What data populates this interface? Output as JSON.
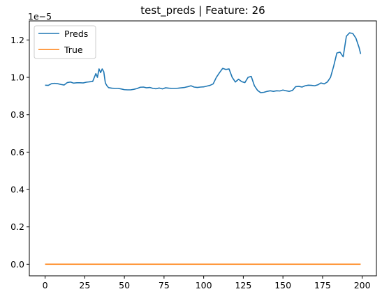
{
  "chart_data": {
    "type": "line",
    "title": "test_preds | Feature: 26",
    "xlabel": "",
    "ylabel": "",
    "offset_text": "1e−5",
    "xlim": [
      -9.95,
      208.95
    ],
    "ylim": [
      -0.062,
      1.302
    ],
    "xticks": [
      0,
      25,
      50,
      75,
      100,
      125,
      150,
      175,
      200
    ],
    "yticks": [
      0.0,
      0.2,
      0.4,
      0.6,
      0.8,
      1.0,
      1.2
    ],
    "ytick_labels": [
      "0.0",
      "0.2",
      "0.4",
      "0.6",
      "0.8",
      "1.0",
      "1.2"
    ],
    "grid": false,
    "legend_position": "top-left",
    "series": [
      {
        "name": "Preds",
        "color": "#1f77b4",
        "x": [
          0,
          2,
          4,
          6,
          8,
          10,
          12,
          14,
          16,
          18,
          20,
          22,
          24,
          26,
          28,
          30,
          32,
          33,
          34,
          35,
          36,
          37,
          38,
          39,
          40,
          42,
          44,
          46,
          48,
          50,
          52,
          54,
          56,
          58,
          60,
          62,
          64,
          66,
          68,
          70,
          72,
          74,
          76,
          78,
          80,
          82,
          84,
          86,
          88,
          90,
          92,
          94,
          96,
          98,
          100,
          102,
          104,
          106,
          108,
          110,
          112,
          114,
          116,
          118,
          120,
          122,
          124,
          126,
          128,
          130,
          132,
          134,
          136,
          138,
          140,
          142,
          144,
          146,
          148,
          150,
          152,
          154,
          156,
          158,
          160,
          162,
          164,
          166,
          168,
          170,
          172,
          174,
          176,
          178,
          180,
          182,
          184,
          186,
          188,
          190,
          192,
          194,
          196,
          198,
          199
        ],
        "values": [
          0.958,
          0.957,
          0.966,
          0.968,
          0.966,
          0.962,
          0.959,
          0.972,
          0.975,
          0.969,
          0.971,
          0.971,
          0.97,
          0.974,
          0.976,
          0.978,
          1.02,
          1.0,
          1.045,
          1.025,
          1.045,
          1.03,
          0.97,
          0.955,
          0.945,
          0.942,
          0.941,
          0.941,
          0.938,
          0.934,
          0.933,
          0.933,
          0.936,
          0.94,
          0.947,
          0.948,
          0.944,
          0.946,
          0.941,
          0.939,
          0.943,
          0.938,
          0.944,
          0.942,
          0.941,
          0.941,
          0.942,
          0.944,
          0.946,
          0.95,
          0.955,
          0.948,
          0.946,
          0.948,
          0.949,
          0.953,
          0.957,
          0.965,
          1.0,
          1.025,
          1.048,
          1.042,
          1.045,
          1.0,
          0.975,
          0.99,
          0.977,
          0.972,
          1.0,
          1.005,
          0.955,
          0.93,
          0.918,
          0.92,
          0.925,
          0.928,
          0.925,
          0.928,
          0.927,
          0.932,
          0.928,
          0.925,
          0.93,
          0.95,
          0.952,
          0.948,
          0.955,
          0.958,
          0.957,
          0.955,
          0.96,
          0.97,
          0.965,
          0.975,
          1.0,
          1.06,
          1.13,
          1.135,
          1.11,
          1.22,
          1.238,
          1.235,
          1.21,
          1.16,
          1.125
        ]
      },
      {
        "name": "True",
        "color": "#ff7f0e",
        "x": [
          0,
          199
        ],
        "values": [
          0.0,
          0.0
        ]
      }
    ]
  }
}
